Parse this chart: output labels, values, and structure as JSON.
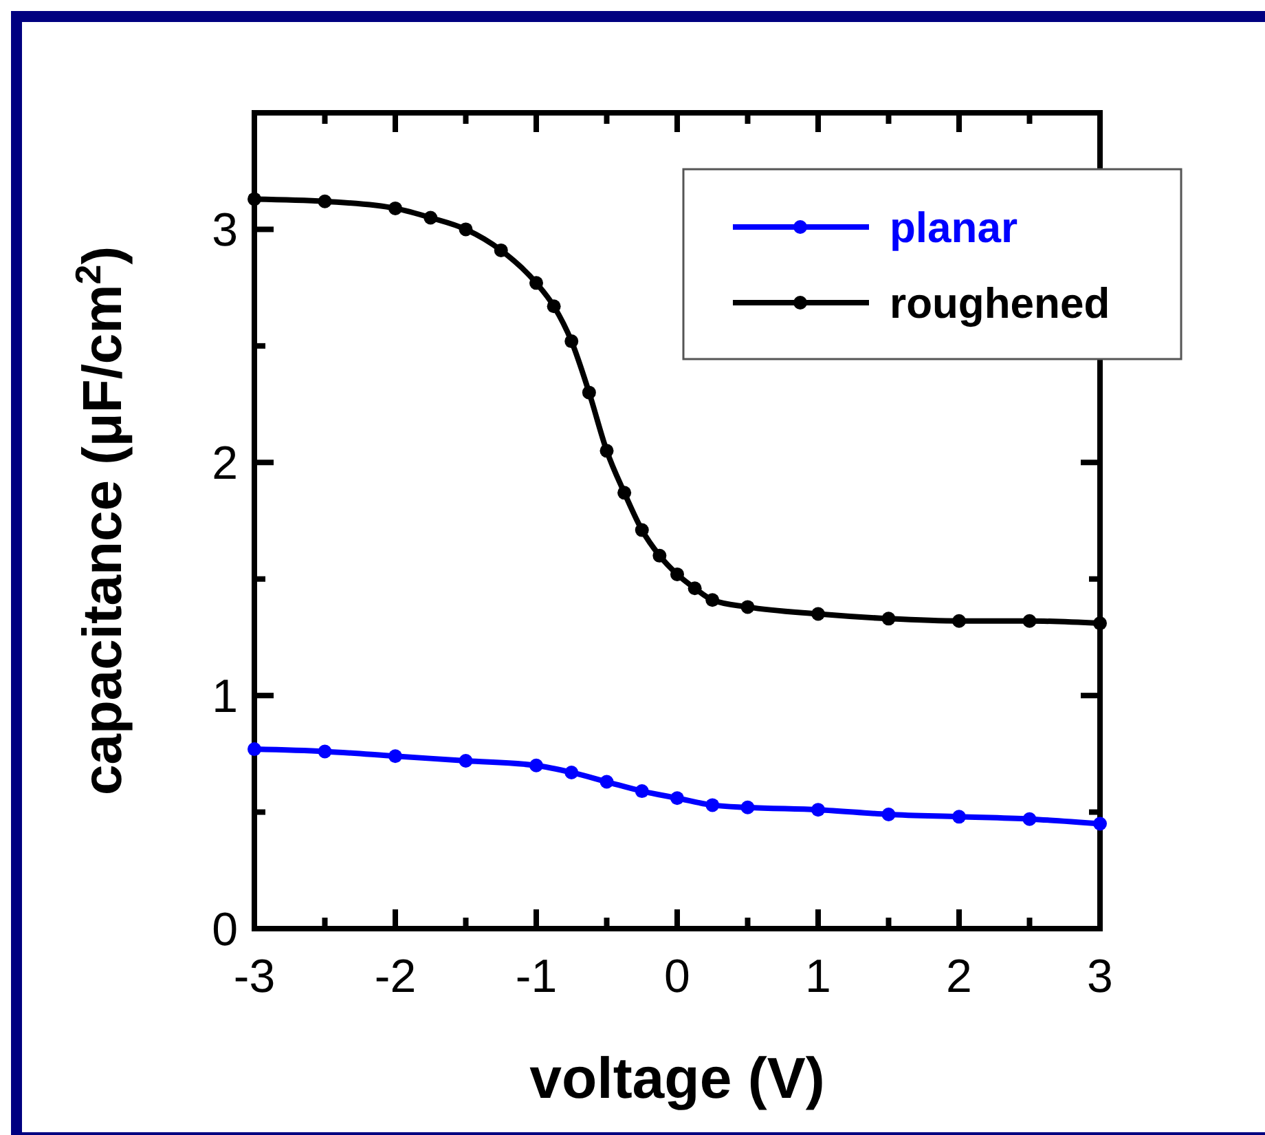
{
  "chart_data": {
    "type": "line",
    "xlabel": "voltage (V)",
    "ylabel": "capacitance (μF/cm$^{2}$)",
    "xlim": [
      -3,
      3
    ],
    "ylim": [
      0,
      3.5
    ],
    "xticks": [
      -3,
      {
        "value": -2.5,
        "label": null
      },
      -2,
      {
        "value": -1.5,
        "label": null
      },
      -1,
      {
        "value": -0.5,
        "label": null
      },
      0,
      {
        "value": 0.5,
        "label": null
      },
      1,
      {
        "value": 1.5,
        "label": null
      },
      2,
      {
        "value": 2.5,
        "label": null
      },
      3
    ],
    "yticks": [
      0,
      {
        "value": 0.5,
        "label": null
      },
      1,
      {
        "value": 1.5,
        "label": null
      },
      2,
      {
        "value": 2.5,
        "label": null
      },
      3
    ],
    "marker": "circle",
    "line_style": "solid",
    "legend": "top right",
    "grid": false,
    "series": [
      {
        "name": "planar",
        "color": "#0000ff",
        "x": [
          -3,
          -2.5,
          -2,
          -1.5,
          -1,
          -0.75,
          -0.5,
          -0.25,
          0,
          0.25,
          0.5,
          1,
          1.5,
          2,
          2.5,
          3
        ],
        "values": [
          0.77,
          0.76,
          0.74,
          0.72,
          0.7,
          0.67,
          0.63,
          0.59,
          0.56,
          0.53,
          0.52,
          0.51,
          0.49,
          0.48,
          0.47,
          0.45
        ]
      },
      {
        "name": "roughened",
        "color": "#000000",
        "x": [
          -3,
          -2.5,
          -2,
          -1.75,
          -1.5,
          -1.25,
          -1,
          -0.875,
          -0.75,
          -0.625,
          -0.5,
          -0.375,
          -0.25,
          -0.125,
          0,
          0.125,
          0.25,
          0.5,
          1,
          1.5,
          2,
          2.5,
          3
        ],
        "values": [
          3.13,
          3.12,
          3.09,
          3.05,
          3,
          2.91,
          2.77,
          2.67,
          2.52,
          2.3,
          2.05,
          1.87,
          1.71,
          1.6,
          1.52,
          1.46,
          1.41,
          1.38,
          1.35,
          1.33,
          1.32,
          1.32,
          1.31
        ]
      }
    ]
  }
}
